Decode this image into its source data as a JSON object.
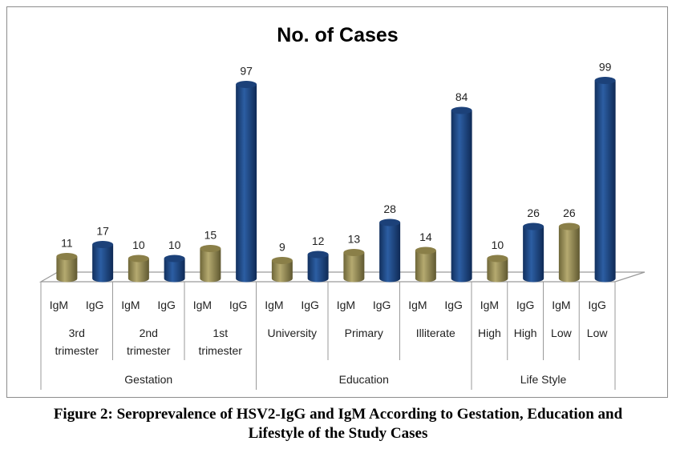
{
  "chart_data": {
    "type": "bar",
    "title": "No. of Cases",
    "style": "3d-cylinder",
    "grid": false,
    "legend": "none",
    "colors": {
      "IgM": "#9c9159",
      "IgG": "#1f4a86"
    },
    "bars": [
      {
        "label": "IgM",
        "sub": "3rd trimester",
        "group": "Gestation",
        "value": 11
      },
      {
        "label": "IgG",
        "sub": "3rd trimester",
        "group": "Gestation",
        "value": 17
      },
      {
        "label": "IgM",
        "sub": "2nd trimester",
        "group": "Gestation",
        "value": 10
      },
      {
        "label": "IgG",
        "sub": "2nd trimester",
        "group": "Gestation",
        "value": 10
      },
      {
        "label": "IgM",
        "sub": "1st trimester",
        "group": "Gestation",
        "value": 15
      },
      {
        "label": "IgG",
        "sub": "1st trimester",
        "group": "Gestation",
        "value": 97
      },
      {
        "label": "IgM",
        "sub": "University",
        "group": "Education",
        "value": 9
      },
      {
        "label": "IgG",
        "sub": "University",
        "group": "Education",
        "value": 12
      },
      {
        "label": "IgM",
        "sub": "Primary",
        "group": "Education",
        "value": 13
      },
      {
        "label": "IgG",
        "sub": "Primary",
        "group": "Education",
        "value": 28
      },
      {
        "label": "IgM",
        "sub": "Illiterate",
        "group": "Education",
        "value": 14
      },
      {
        "label": "IgG",
        "sub": "Illiterate",
        "group": "Education",
        "value": 84
      },
      {
        "label": "IgM",
        "sub": "High",
        "group": "Life Style",
        "value": 10
      },
      {
        "label": "IgG",
        "sub": "High",
        "group": "Life Style",
        "value": 26
      },
      {
        "label": "IgM",
        "sub": "Low",
        "group": "Life Style",
        "value": 26
      },
      {
        "label": "IgG",
        "sub": "Low",
        "group": "Life Style",
        "value": 99
      }
    ],
    "subcategories": [
      {
        "lines": [
          "3rd",
          "trimester"
        ],
        "span": 2
      },
      {
        "lines": [
          "2nd",
          "trimester"
        ],
        "span": 2
      },
      {
        "lines": [
          "1st",
          "trimester"
        ],
        "span": 2
      },
      {
        "lines": [
          "University"
        ],
        "span": 2
      },
      {
        "lines": [
          "Primary"
        ],
        "span": 2
      },
      {
        "lines": [
          "Illiterate"
        ],
        "span": 2
      },
      {
        "lines": [
          "High"
        ],
        "span": 1
      },
      {
        "lines": [
          "High"
        ],
        "span": 1
      },
      {
        "lines": [
          "Low"
        ],
        "span": 1
      },
      {
        "lines": [
          "Low"
        ],
        "span": 1
      }
    ],
    "groups": [
      {
        "label": "Gestation",
        "span": 6
      },
      {
        "label": "Education",
        "span": 6
      },
      {
        "label": "Life Style",
        "span": 4
      }
    ]
  },
  "caption": {
    "line1": "Figure 2: Seroprevalence of HSV2-IgG and IgM According to Gestation, Education and",
    "line2": "Lifestyle of the Study Cases"
  }
}
